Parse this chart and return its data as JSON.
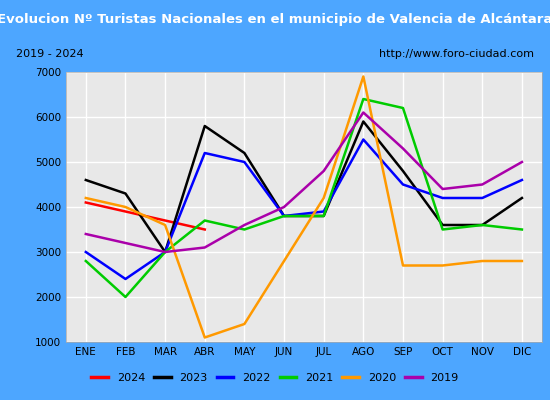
{
  "title": "Evolucion Nº Turistas Nacionales en el municipio de Valencia de Alcántara",
  "subtitle_left": "2019 - 2024",
  "subtitle_right": "http://www.foro-ciudad.com",
  "months": [
    "ENE",
    "FEB",
    "MAR",
    "ABR",
    "MAY",
    "JUN",
    "JUL",
    "AGO",
    "SEP",
    "OCT",
    "NOV",
    "DIC"
  ],
  "series": {
    "2024": {
      "color": "#ff0000",
      "data": [
        4100,
        3900,
        3700,
        3500,
        null,
        null,
        null,
        null,
        null,
        null,
        null,
        null
      ]
    },
    "2023": {
      "color": "#000000",
      "data": [
        4600,
        4300,
        3000,
        5800,
        5200,
        3800,
        3800,
        5900,
        4800,
        3600,
        3600,
        4200
      ]
    },
    "2022": {
      "color": "#0000ff",
      "data": [
        3000,
        2400,
        3000,
        5200,
        5000,
        3800,
        3900,
        5500,
        4500,
        4200,
        4200,
        4600
      ]
    },
    "2021": {
      "color": "#00cc00",
      "data": [
        2800,
        2000,
        3000,
        3700,
        3500,
        3800,
        3800,
        6400,
        6200,
        3500,
        3600,
        3500
      ]
    },
    "2020": {
      "color": "#ff9900",
      "data": [
        4200,
        4000,
        3600,
        1100,
        1400,
        2800,
        4200,
        6900,
        2700,
        2700,
        2800,
        2800
      ]
    },
    "2019": {
      "color": "#aa00aa",
      "data": [
        3400,
        3200,
        3000,
        3100,
        3600,
        4000,
        4800,
        6100,
        5300,
        4400,
        4500,
        5000
      ]
    }
  },
  "ylim": [
    1000,
    7000
  ],
  "yticks": [
    1000,
    2000,
    3000,
    4000,
    5000,
    6000,
    7000
  ],
  "title_background": "#4da6ff",
  "plot_background": "#e8e8e8",
  "grid_color": "#ffffff",
  "legend_order": [
    "2024",
    "2023",
    "2022",
    "2021",
    "2020",
    "2019"
  ]
}
